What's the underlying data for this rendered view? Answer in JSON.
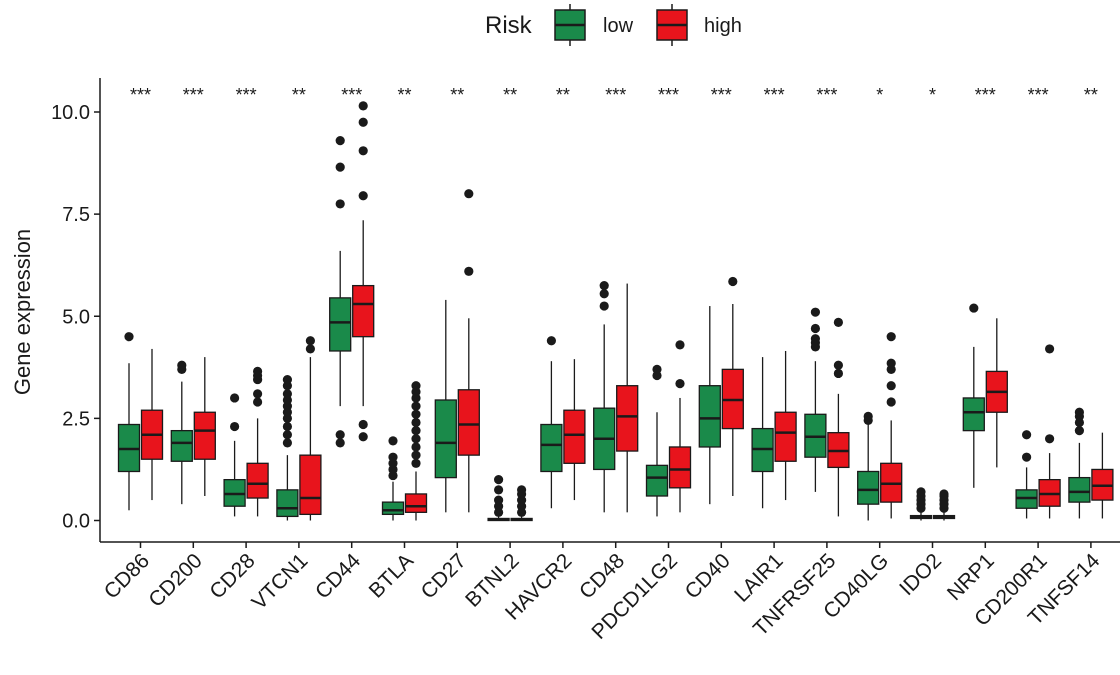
{
  "chart_data": {
    "type": "box",
    "ylabel": "Gene expression",
    "ylim": [
      -0.5,
      10.5
    ],
    "yticks": [
      0.0,
      2.5,
      5.0,
      7.5,
      10.0
    ],
    "ytick_labels": [
      "0.0",
      "2.5",
      "5.0",
      "7.5",
      "10.0"
    ],
    "categories": [
      "CD86",
      "CD200",
      "CD28",
      "VTCN1",
      "CD44",
      "BTLA",
      "CD27",
      "BTNL2",
      "HAVCR2",
      "CD48",
      "PDCD1LG2",
      "CD40",
      "LAIR1",
      "TNFRSF25",
      "CD40LG",
      "IDO2",
      "NRP1",
      "CD200R1",
      "TNFSF14"
    ],
    "significance": [
      "***",
      "***",
      "***",
      "**",
      "***",
      "**",
      "**",
      "**",
      "**",
      "***",
      "***",
      "***",
      "***",
      "***",
      "*",
      "*",
      "***",
      "***",
      "**"
    ],
    "legend": {
      "title": "Risk",
      "position": "top",
      "entries": [
        {
          "label": "low",
          "color": "#1a8a4a"
        },
        {
          "label": "high",
          "color": "#e8141c"
        }
      ]
    },
    "series": [
      {
        "name": "low",
        "color": "#1a8a4a",
        "boxes": [
          {
            "min": 0.25,
            "q1": 1.2,
            "median": 1.75,
            "q3": 2.35,
            "max": 3.85,
            "outliers": [
              4.5
            ]
          },
          {
            "min": 0.4,
            "q1": 1.45,
            "median": 1.9,
            "q3": 2.2,
            "max": 3.4,
            "outliers": [
              3.7,
              3.8
            ]
          },
          {
            "min": 0.1,
            "q1": 0.35,
            "median": 0.65,
            "q3": 1.0,
            "max": 1.95,
            "outliers": [
              2.3,
              3.0
            ]
          },
          {
            "min": 0.0,
            "q1": 0.1,
            "median": 0.3,
            "q3": 0.75,
            "max": 1.6,
            "outliers": [
              1.9,
              2.1,
              2.3,
              2.5,
              2.65,
              2.8,
              2.95,
              3.1,
              3.3,
              3.45
            ]
          },
          {
            "min": 2.8,
            "q1": 4.15,
            "median": 4.85,
            "q3": 5.45,
            "max": 6.6,
            "outliers": [
              1.9,
              2.1,
              7.75,
              8.65,
              9.3
            ]
          },
          {
            "min": 0.0,
            "q1": 0.15,
            "median": 0.25,
            "q3": 0.45,
            "max": 0.95,
            "outliers": [
              1.1,
              1.25,
              1.4,
              1.55,
              1.95
            ]
          },
          {
            "min": 0.2,
            "q1": 1.05,
            "median": 1.9,
            "q3": 2.95,
            "max": 5.4,
            "outliers": []
          },
          {
            "min": 0.0,
            "q1": 0.0,
            "median": 0.02,
            "q3": 0.05,
            "max": 0.1,
            "outliers": [
              0.2,
              0.35,
              0.5,
              0.75,
              1.0
            ]
          },
          {
            "min": 0.3,
            "q1": 1.2,
            "median": 1.85,
            "q3": 2.35,
            "max": 3.9,
            "outliers": [
              4.4
            ]
          },
          {
            "min": 0.2,
            "q1": 1.25,
            "median": 2.0,
            "q3": 2.75,
            "max": 4.8,
            "outliers": [
              5.25,
              5.55,
              5.75
            ]
          },
          {
            "min": 0.1,
            "q1": 0.6,
            "median": 1.05,
            "q3": 1.35,
            "max": 2.65,
            "outliers": [
              3.55,
              3.7
            ]
          },
          {
            "min": 0.4,
            "q1": 1.8,
            "median": 2.5,
            "q3": 3.3,
            "max": 5.25,
            "outliers": []
          },
          {
            "min": 0.3,
            "q1": 1.2,
            "median": 1.75,
            "q3": 2.25,
            "max": 4.0,
            "outliers": []
          },
          {
            "min": 0.7,
            "q1": 1.55,
            "median": 2.05,
            "q3": 2.6,
            "max": 3.9,
            "outliers": [
              4.25,
              4.35,
              4.45,
              4.7,
              5.1
            ]
          },
          {
            "min": 0.0,
            "q1": 0.4,
            "median": 0.75,
            "q3": 1.2,
            "max": 2.35,
            "outliers": [
              2.45,
              2.55
            ]
          },
          {
            "min": 0.0,
            "q1": 0.05,
            "median": 0.08,
            "q3": 0.12,
            "max": 0.2,
            "outliers": [
              0.3,
              0.4,
              0.5,
              0.6,
              0.7
            ]
          },
          {
            "min": 0.8,
            "q1": 2.2,
            "median": 2.65,
            "q3": 3.0,
            "max": 4.25,
            "outliers": [
              5.2
            ]
          },
          {
            "min": 0.05,
            "q1": 0.3,
            "median": 0.55,
            "q3": 0.75,
            "max": 1.3,
            "outliers": [
              1.55,
              2.1
            ]
          },
          {
            "min": 0.05,
            "q1": 0.45,
            "median": 0.7,
            "q3": 1.05,
            "max": 1.9,
            "outliers": [
              2.2,
              2.4,
              2.55,
              2.65
            ]
          }
        ]
      },
      {
        "name": "high",
        "color": "#e8141c",
        "boxes": [
          {
            "min": 0.5,
            "q1": 1.5,
            "median": 2.1,
            "q3": 2.7,
            "max": 4.2,
            "outliers": []
          },
          {
            "min": 0.6,
            "q1": 1.5,
            "median": 2.2,
            "q3": 2.65,
            "max": 4.0,
            "outliers": []
          },
          {
            "min": 0.1,
            "q1": 0.55,
            "median": 0.9,
            "q3": 1.4,
            "max": 2.5,
            "outliers": [
              2.9,
              3.1,
              3.45,
              3.55,
              3.65
            ]
          },
          {
            "min": 0.0,
            "q1": 0.15,
            "median": 0.55,
            "q3": 1.6,
            "max": 4.0,
            "outliers": [
              4.2,
              4.4
            ]
          },
          {
            "min": 2.8,
            "q1": 4.5,
            "median": 5.3,
            "q3": 5.75,
            "max": 7.35,
            "outliers": [
              2.05,
              2.35,
              7.95,
              9.05,
              9.75,
              10.15
            ]
          },
          {
            "min": 0.0,
            "q1": 0.2,
            "median": 0.35,
            "q3": 0.65,
            "max": 1.2,
            "outliers": [
              1.4,
              1.6,
              1.8,
              2.0,
              2.2,
              2.4,
              2.6,
              2.8,
              3.0,
              3.15,
              3.3
            ]
          },
          {
            "min": 0.2,
            "q1": 1.6,
            "median": 2.35,
            "q3": 3.2,
            "max": 4.95,
            "outliers": [
              6.1,
              8.0
            ]
          },
          {
            "min": 0.0,
            "q1": 0.0,
            "median": 0.02,
            "q3": 0.05,
            "max": 0.1,
            "outliers": [
              0.2,
              0.35,
              0.5,
              0.65,
              0.75
            ]
          },
          {
            "min": 0.5,
            "q1": 1.4,
            "median": 2.1,
            "q3": 2.7,
            "max": 3.95,
            "outliers": []
          },
          {
            "min": 0.2,
            "q1": 1.7,
            "median": 2.55,
            "q3": 3.3,
            "max": 5.8,
            "outliers": []
          },
          {
            "min": 0.2,
            "q1": 0.8,
            "median": 1.25,
            "q3": 1.8,
            "max": 3.0,
            "outliers": [
              3.35,
              4.3
            ]
          },
          {
            "min": 0.6,
            "q1": 2.25,
            "median": 2.95,
            "q3": 3.7,
            "max": 5.3,
            "outliers": [
              5.85
            ]
          },
          {
            "min": 0.5,
            "q1": 1.45,
            "median": 2.15,
            "q3": 2.65,
            "max": 4.15,
            "outliers": []
          },
          {
            "min": 0.1,
            "q1": 1.3,
            "median": 1.7,
            "q3": 2.15,
            "max": 3.1,
            "outliers": [
              3.6,
              3.8,
              4.85
            ]
          },
          {
            "min": 0.05,
            "q1": 0.45,
            "median": 0.9,
            "q3": 1.4,
            "max": 2.45,
            "outliers": [
              2.9,
              3.3,
              3.7,
              3.85,
              4.5
            ]
          },
          {
            "min": 0.0,
            "q1": 0.05,
            "median": 0.08,
            "q3": 0.12,
            "max": 0.2,
            "outliers": [
              0.3,
              0.4,
              0.5,
              0.6,
              0.65
            ]
          },
          {
            "min": 1.3,
            "q1": 2.65,
            "median": 3.15,
            "q3": 3.65,
            "max": 4.95,
            "outliers": []
          },
          {
            "min": 0.05,
            "q1": 0.35,
            "median": 0.65,
            "q3": 1.0,
            "max": 1.65,
            "outliers": [
              2.0,
              4.2
            ]
          },
          {
            "min": 0.05,
            "q1": 0.5,
            "median": 0.85,
            "q3": 1.25,
            "max": 2.15,
            "outliers": []
          }
        ]
      }
    ]
  }
}
